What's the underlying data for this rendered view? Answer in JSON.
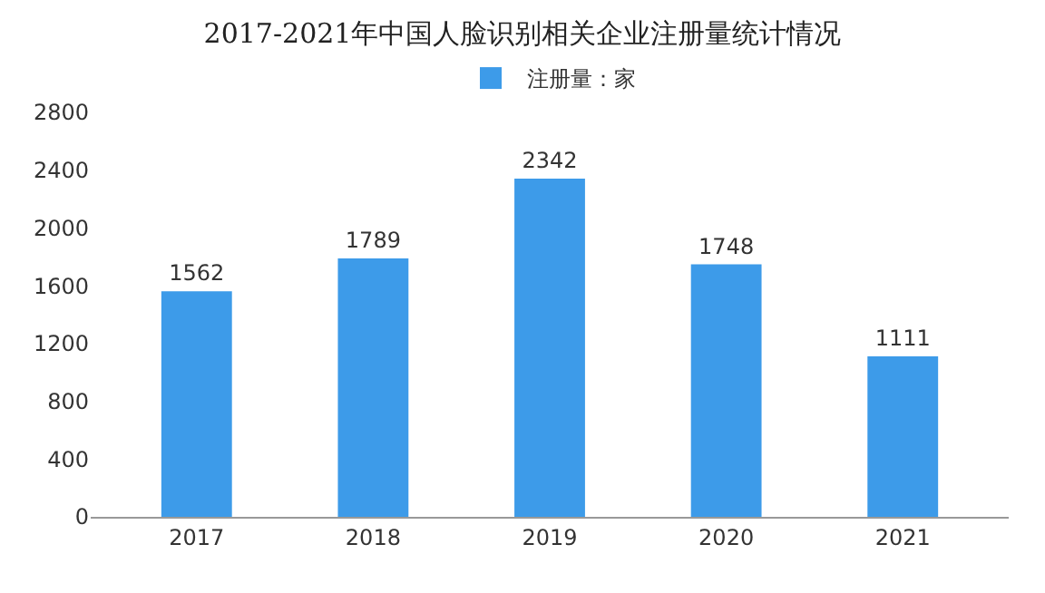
{
  "chart_data": {
    "type": "bar",
    "title": "2017-2021年中国人脸识别相关企业注册量统计情况",
    "categories": [
      "2017",
      "2018",
      "2019",
      "2020",
      "2021"
    ],
    "series": [
      {
        "name": "注册量：家",
        "color": "#3d9be9",
        "values": [
          1562,
          1789,
          2342,
          1748,
          1111
        ]
      }
    ],
    "ylim": [
      0,
      2800
    ],
    "yticks": [
      0,
      400,
      800,
      1200,
      1600,
      2000,
      2400,
      2800
    ],
    "data_labels": true,
    "legend": "top",
    "grid": false
  }
}
